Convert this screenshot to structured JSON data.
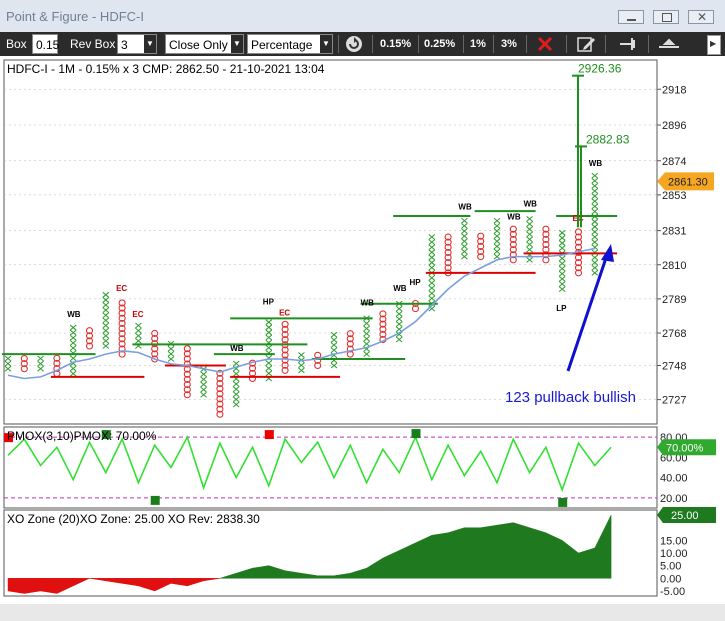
{
  "window": {
    "title": "Point & Figure - HDFC-I"
  },
  "toolbar": {
    "box_label": "Box",
    "box_value": "0.15",
    "rev_box_label": "Rev Box",
    "rev_box_value": "3",
    "price_type": "Close Only",
    "box_type": "Percentage",
    "presets": [
      "0.15%",
      "0.25%",
      "1%",
      "3%"
    ]
  },
  "chart_data": [
    {
      "type": "point-and-figure",
      "title": "HDFC-I - 1M - 0.15% x 3 CMP: 2862.50 - 21-10-2021 13:04",
      "y_ticks": [
        2727,
        2748,
        2768,
        2789,
        2810,
        2831,
        2853,
        2874,
        2896,
        2918
      ],
      "ylim": [
        2712,
        2936
      ],
      "price_marker": {
        "label": "2861.30",
        "value": 2861.3
      },
      "targets": [
        {
          "label": "2926.36",
          "value": 2926.36
        },
        {
          "label": "2882.83",
          "value": 2882.83
        }
      ],
      "annotation": "123 pullback bullish",
      "column_labels": [
        {
          "text": "EC",
          "col": 7
        },
        {
          "text": "HP",
          "col": 16
        },
        {
          "text": "EC",
          "col": 17
        },
        {
          "text": "WB",
          "col": 4
        },
        {
          "text": "EC",
          "col": 8
        },
        {
          "text": "WB",
          "col": 14
        },
        {
          "text": "WB",
          "col": 22
        },
        {
          "text": "WB",
          "col": 24
        },
        {
          "text": "HP",
          "col": 25
        },
        {
          "text": "WB",
          "col": 28
        },
        {
          "text": "WB",
          "col": 31
        },
        {
          "text": "WB",
          "col": 32
        },
        {
          "text": "WB",
          "col": 36
        },
        {
          "text": "EC",
          "col": 35
        },
        {
          "text": "LP",
          "col": 34
        }
      ],
      "columns": [
        {
          "t": "X",
          "lo": 2746,
          "hi": 2755
        },
        {
          "t": "O",
          "lo": 2746,
          "hi": 2755
        },
        {
          "t": "X",
          "lo": 2746,
          "hi": 2755
        },
        {
          "t": "O",
          "lo": 2743,
          "hi": 2755
        },
        {
          "t": "X",
          "lo": 2743,
          "hi": 2773
        },
        {
          "t": "O",
          "lo": 2760,
          "hi": 2771
        },
        {
          "t": "X",
          "lo": 2760,
          "hi": 2792
        },
        {
          "t": "O",
          "lo": 2755,
          "hi": 2789
        },
        {
          "t": "X",
          "lo": 2760,
          "hi": 2773
        },
        {
          "t": "O",
          "lo": 2752,
          "hi": 2770
        },
        {
          "t": "X",
          "lo": 2752,
          "hi": 2764
        },
        {
          "t": "O",
          "lo": 2730,
          "hi": 2761
        },
        {
          "t": "X",
          "lo": 2730,
          "hi": 2748
        },
        {
          "t": "O",
          "lo": 2718,
          "hi": 2745
        },
        {
          "t": "X",
          "lo": 2724,
          "hi": 2752
        },
        {
          "t": "O",
          "lo": 2740,
          "hi": 2752
        },
        {
          "t": "X",
          "lo": 2740,
          "hi": 2777
        },
        {
          "t": "O",
          "lo": 2745,
          "hi": 2774
        },
        {
          "t": "X",
          "lo": 2745,
          "hi": 2755
        },
        {
          "t": "O",
          "lo": 2748,
          "hi": 2755
        },
        {
          "t": "X",
          "lo": 2748,
          "hi": 2770
        },
        {
          "t": "O",
          "lo": 2755,
          "hi": 2770
        },
        {
          "t": "X",
          "lo": 2755,
          "hi": 2780
        },
        {
          "t": "O",
          "lo": 2764,
          "hi": 2780
        },
        {
          "t": "X",
          "lo": 2764,
          "hi": 2789
        },
        {
          "t": "O",
          "lo": 2783,
          "hi": 2789
        },
        {
          "t": "X",
          "lo": 2783,
          "hi": 2830
        },
        {
          "t": "O",
          "lo": 2805,
          "hi": 2830
        },
        {
          "t": "X",
          "lo": 2815,
          "hi": 2839
        },
        {
          "t": "O",
          "lo": 2815,
          "hi": 2830
        },
        {
          "t": "X",
          "lo": 2815,
          "hi": 2839
        },
        {
          "t": "O",
          "lo": 2813,
          "hi": 2833
        },
        {
          "t": "X",
          "lo": 2813,
          "hi": 2841
        },
        {
          "t": "O",
          "lo": 2813,
          "hi": 2833
        },
        {
          "t": "X",
          "lo": 2795,
          "hi": 2832
        },
        {
          "t": "O",
          "lo": 2805,
          "hi": 2832
        },
        {
          "t": "X",
          "lo": 2805,
          "hi": 2866
        }
      ],
      "moving_average": [
        2742,
        2740,
        2741,
        2745,
        2750,
        2752,
        2755,
        2757,
        2756,
        2752,
        2749,
        2748,
        2746,
        2744,
        2747,
        2750,
        2752,
        2752,
        2751,
        2752,
        2755,
        2757,
        2759,
        2763,
        2768,
        2775,
        2785,
        2795,
        2803,
        2808,
        2813,
        2815,
        2815,
        2815,
        2816,
        2818,
        2820
      ]
    },
    {
      "type": "line",
      "title": "PMOX(3,10)PMOX: 70.00%",
      "y_ticks": [
        20,
        40,
        60,
        80
      ],
      "ylim": [
        10,
        90
      ],
      "value_marker": {
        "label": "70.00%",
        "value": 70
      },
      "values": [
        62,
        78,
        52,
        70,
        38,
        75,
        45,
        78,
        35,
        72,
        50,
        80,
        30,
        74,
        40,
        70,
        32,
        78,
        55,
        75,
        40,
        72,
        35,
        68,
        45,
        80,
        38,
        72,
        42,
        66,
        35,
        78,
        45,
        70,
        28,
        74,
        52,
        70
      ]
    },
    {
      "type": "area",
      "title": "XO Zone (20)XO Zone: 25.00 XO Rev: 2838.30",
      "y_ticks": [
        "25",
        "15.00",
        "10.00",
        "5.00",
        "0.00",
        "-5.00"
      ],
      "ylim": [
        -7,
        27
      ],
      "value_marker": {
        "label": "25.00",
        "value": 25
      },
      "values": [
        -5,
        -6,
        -5,
        -6,
        -3,
        0,
        -1,
        -2,
        -3,
        -5,
        -2,
        -3,
        -1,
        0,
        2,
        4,
        5,
        3,
        2,
        1,
        1,
        2,
        4,
        8,
        11,
        14,
        17,
        18,
        20,
        20,
        21,
        22,
        20,
        18,
        15,
        10,
        12,
        25
      ]
    }
  ]
}
